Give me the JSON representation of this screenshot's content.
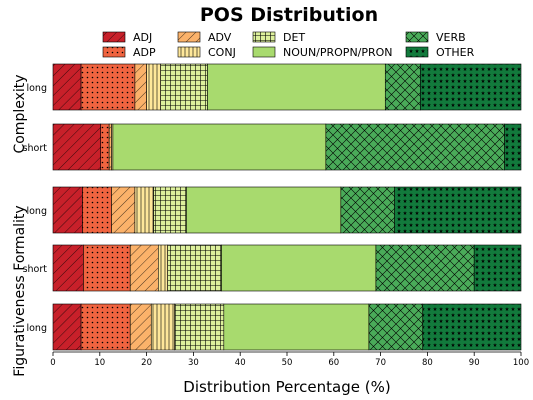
{
  "chart_data": {
    "type": "bar",
    "orientation": "horizontal",
    "stacked": true,
    "title": "POS Distribution",
    "xlabel": "Distribution Percentage (%)",
    "xlim": [
      0,
      100
    ],
    "xticks": [
      0,
      10,
      20,
      30,
      40,
      50,
      60,
      70,
      80,
      90,
      100
    ],
    "legend_placement": "top",
    "grid": false,
    "series_names": [
      "ADJ",
      "ADP",
      "ADV",
      "CONJ",
      "DET",
      "NOUN/PROPN/PRON",
      "VERB",
      "OTHER"
    ],
    "series_colors": [
      "#c8202a",
      "#f06440",
      "#fbb26a",
      "#fee79a",
      "#ddf09c",
      "#a8da6e",
      "#4aab59",
      "#127a3c"
    ],
    "series_patterns": [
      "diag",
      "dots",
      "diag",
      "vert",
      "grid",
      "none",
      "cross",
      "stars"
    ],
    "groups": [
      {
        "label": "Complexity",
        "bars": [
          {
            "label": "long",
            "values": [
              6,
              11.5,
              2.5,
              3,
              10,
              38,
              7.5,
              21.5
            ]
          },
          {
            "label": "short",
            "values": [
              10.2,
              1.8,
              0.5,
              0.3,
              0,
              45.5,
              38.2,
              3.5
            ]
          }
        ]
      },
      {
        "label": "Formality",
        "bars": [
          {
            "label": "long",
            "values": [
              6.3,
              6.2,
              5,
              4,
              7,
              33,
              11.5,
              27
            ]
          },
          {
            "label": "short",
            "values": [
              6.5,
              10,
              6,
              2,
              11.5,
              33,
              21,
              10
            ]
          }
        ]
      },
      {
        "label": "Figurativeness",
        "bars": [
          {
            "label": "long",
            "values": [
              6,
              10.5,
              4.5,
              5,
              10.5,
              31,
              11.5,
              21
            ]
          }
        ]
      }
    ]
  }
}
